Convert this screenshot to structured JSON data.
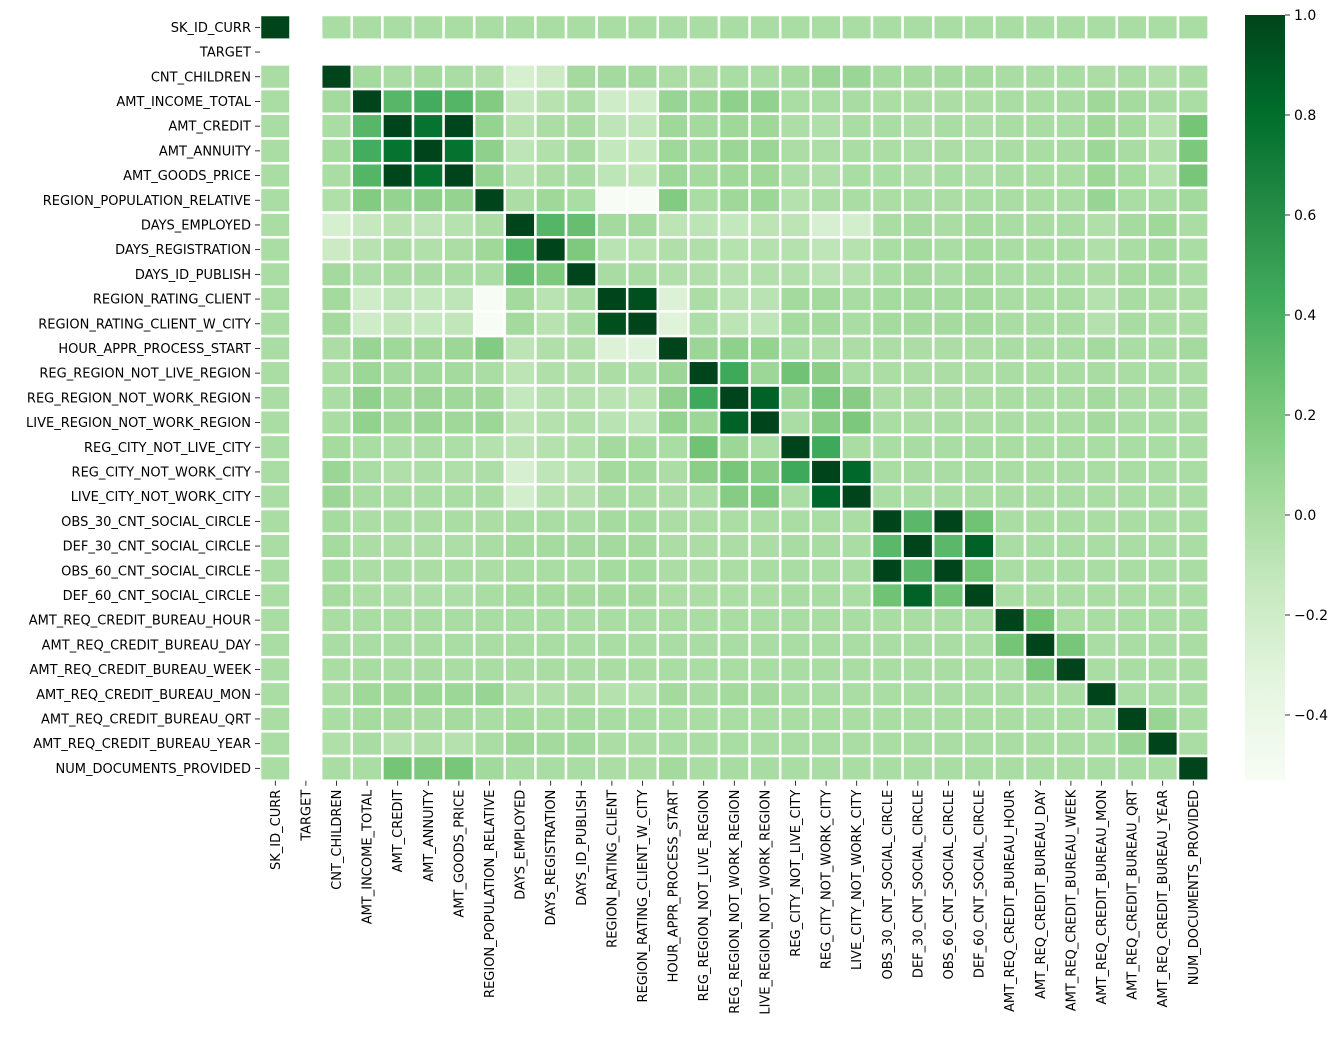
{
  "chart_data": {
    "type": "heatmap",
    "title": "",
    "colormap": "Greens",
    "colors": {
      "low": "#f7fcf5",
      "high": "#00441b",
      "nan": "#ffffff",
      "cell_border": "#ffffff"
    },
    "vmin": -0.53,
    "vmax": 1.0,
    "labels": [
      "SK_ID_CURR",
      "TARGET",
      "CNT_CHILDREN",
      "AMT_INCOME_TOTAL",
      "AMT_CREDIT",
      "AMT_ANNUITY",
      "AMT_GOODS_PRICE",
      "REGION_POPULATION_RELATIVE",
      "DAYS_EMPLOYED",
      "DAYS_REGISTRATION",
      "DAYS_ID_PUBLISH",
      "REGION_RATING_CLIENT",
      "REGION_RATING_CLIENT_W_CITY",
      "HOUR_APPR_PROCESS_START",
      "REG_REGION_NOT_LIVE_REGION",
      "REG_REGION_NOT_WORK_REGION",
      "LIVE_REGION_NOT_WORK_REGION",
      "REG_CITY_NOT_LIVE_CITY",
      "REG_CITY_NOT_WORK_CITY",
      "LIVE_CITY_NOT_WORK_CITY",
      "OBS_30_CNT_SOCIAL_CIRCLE",
      "DEF_30_CNT_SOCIAL_CIRCLE",
      "OBS_60_CNT_SOCIAL_CIRCLE",
      "DEF_60_CNT_SOCIAL_CIRCLE",
      "AMT_REQ_CREDIT_BUREAU_HOUR",
      "AMT_REQ_CREDIT_BUREAU_DAY",
      "AMT_REQ_CREDIT_BUREAU_WEEK",
      "AMT_REQ_CREDIT_BUREAU_MON",
      "AMT_REQ_CREDIT_BUREAU_QRT",
      "AMT_REQ_CREDIT_BUREAU_YEAR",
      "NUM_DOCUMENTS_PROVIDED"
    ],
    "matrix": [
      [
        1.0,
        null,
        0.0,
        0.0,
        0.0,
        0.0,
        0.0,
        0.0,
        0.0,
        0.0,
        0.0,
        0.0,
        0.0,
        0.0,
        0.0,
        0.0,
        0.0,
        0.0,
        0.0,
        0.0,
        0.0,
        0.0,
        0.0,
        0.0,
        0.0,
        0.0,
        0.0,
        0.0,
        0.0,
        0.0,
        0.0
      ],
      [
        null,
        null,
        null,
        null,
        null,
        null,
        null,
        null,
        null,
        null,
        null,
        null,
        null,
        null,
        null,
        null,
        null,
        null,
        null,
        null,
        null,
        null,
        null,
        null,
        null,
        null,
        null,
        null,
        null,
        null,
        null
      ],
      [
        0.0,
        null,
        1.0,
        0.03,
        0.0,
        0.02,
        0.0,
        -0.03,
        -0.24,
        -0.18,
        0.03,
        0.03,
        0.03,
        -0.01,
        -0.01,
        0.0,
        0.0,
        0.02,
        0.07,
        0.07,
        0.02,
        0.02,
        0.02,
        0.02,
        0.0,
        0.0,
        0.0,
        -0.01,
        0.0,
        -0.03,
        0.0
      ],
      [
        0.0,
        null,
        0.03,
        1.0,
        0.34,
        0.42,
        0.35,
        0.17,
        -0.14,
        -0.07,
        -0.02,
        -0.19,
        -0.2,
        0.08,
        0.06,
        0.12,
        0.11,
        0.0,
        0.0,
        0.01,
        -0.01,
        -0.01,
        -0.01,
        -0.01,
        0.0,
        0.0,
        0.01,
        0.05,
        0.02,
        0.01,
        0.0
      ],
      [
        0.0,
        null,
        0.0,
        0.34,
        1.0,
        0.77,
        0.99,
        0.1,
        -0.07,
        -0.01,
        0.01,
        -0.1,
        -0.11,
        0.05,
        0.03,
        0.05,
        0.05,
        -0.02,
        -0.03,
        0.0,
        0.0,
        -0.02,
        0.0,
        -0.02,
        0.0,
        0.0,
        0.0,
        0.05,
        0.02,
        -0.05,
        0.23
      ],
      [
        0.0,
        null,
        0.02,
        0.42,
        0.77,
        1.0,
        0.78,
        0.12,
        -0.1,
        -0.04,
        0.01,
        -0.13,
        -0.14,
        0.05,
        0.04,
        0.07,
        0.07,
        -0.01,
        -0.02,
        0.0,
        -0.01,
        -0.02,
        -0.01,
        -0.02,
        0.0,
        0.0,
        0.01,
        0.06,
        0.01,
        -0.03,
        0.2
      ],
      [
        0.0,
        null,
        0.0,
        0.35,
        0.99,
        0.78,
        1.0,
        0.1,
        -0.06,
        -0.01,
        0.01,
        -0.1,
        -0.11,
        0.06,
        0.03,
        0.05,
        0.05,
        -0.02,
        -0.03,
        0.0,
        0.0,
        -0.02,
        0.0,
        -0.02,
        0.0,
        0.0,
        0.0,
        0.06,
        0.02,
        -0.05,
        0.22
      ],
      [
        0.0,
        null,
        -0.03,
        0.17,
        0.1,
        0.12,
        0.1,
        1.0,
        -0.01,
        0.05,
        0.0,
        -0.53,
        -0.53,
        0.17,
        0.0,
        0.05,
        0.06,
        -0.05,
        -0.02,
        0.0,
        -0.01,
        0.0,
        -0.01,
        0.0,
        0.0,
        0.0,
        0.0,
        0.08,
        -0.0,
        0.0,
        0.04
      ],
      [
        0.0,
        null,
        -0.24,
        -0.14,
        -0.07,
        -0.1,
        -0.06,
        -0.01,
        1.0,
        0.35,
        0.28,
        0.03,
        0.03,
        -0.09,
        -0.09,
        -0.13,
        -0.09,
        -0.09,
        -0.25,
        -0.22,
        0.0,
        0.02,
        0.0,
        0.02,
        0.0,
        0.0,
        0.0,
        -0.03,
        0.02,
        0.05,
        0.0
      ],
      [
        0.0,
        null,
        -0.18,
        -0.07,
        -0.01,
        -0.04,
        -0.01,
        0.05,
        0.35,
        1.0,
        0.19,
        -0.08,
        -0.07,
        -0.03,
        -0.03,
        -0.06,
        -0.05,
        -0.05,
        -0.1,
        -0.06,
        0.0,
        0.02,
        0.0,
        0.02,
        0.0,
        0.0,
        0.0,
        -0.03,
        0.0,
        0.03,
        0.0
      ],
      [
        0.0,
        null,
        0.03,
        -0.02,
        0.01,
        0.01,
        0.01,
        0.0,
        0.28,
        0.19,
        1.0,
        0.01,
        0.01,
        -0.03,
        -0.03,
        -0.05,
        -0.04,
        -0.04,
        -0.08,
        -0.05,
        0.0,
        0.03,
        0.0,
        0.03,
        0.0,
        0.0,
        0.0,
        -0.01,
        0.02,
        0.04,
        0.0
      ],
      [
        0.0,
        null,
        0.03,
        -0.19,
        -0.1,
        -0.13,
        -0.1,
        -0.53,
        0.03,
        -0.08,
        0.01,
        1.0,
        0.95,
        -0.28,
        -0.01,
        -0.08,
        -0.08,
        0.03,
        0.03,
        0.01,
        0.02,
        0.03,
        0.02,
        0.03,
        0.0,
        0.0,
        0.0,
        -0.05,
        0.01,
        -0.01,
        -0.01
      ],
      [
        0.0,
        null,
        0.03,
        -0.2,
        -0.11,
        -0.14,
        -0.11,
        -0.53,
        0.03,
        -0.07,
        0.01,
        0.95,
        1.0,
        -0.3,
        -0.02,
        -0.09,
        -0.1,
        0.02,
        0.03,
        0.0,
        0.02,
        0.03,
        0.02,
        0.03,
        0.0,
        0.0,
        0.0,
        -0.05,
        0.01,
        -0.01,
        -0.01
      ],
      [
        0.0,
        null,
        -0.01,
        0.08,
        0.05,
        0.05,
        0.06,
        0.17,
        -0.09,
        -0.03,
        -0.03,
        -0.28,
        -0.3,
        1.0,
        0.07,
        0.12,
        0.1,
        0.0,
        -0.01,
        -0.01,
        -0.01,
        -0.01,
        -0.01,
        -0.01,
        0.0,
        0.0,
        0.0,
        0.03,
        0.0,
        0.0,
        0.03
      ],
      [
        0.0,
        null,
        -0.01,
        0.06,
        0.03,
        0.04,
        0.03,
        0.0,
        -0.09,
        -0.03,
        -0.03,
        -0.01,
        -0.02,
        0.07,
        1.0,
        0.44,
        0.06,
        0.25,
        0.14,
        0.0,
        -0.01,
        -0.01,
        -0.01,
        -0.01,
        0.0,
        0.0,
        0.0,
        0.01,
        0.0,
        0.0,
        0.0
      ],
      [
        0.0,
        null,
        0.0,
        0.12,
        0.05,
        0.07,
        0.05,
        0.05,
        -0.13,
        -0.06,
        -0.05,
        -0.08,
        -0.09,
        0.12,
        0.44,
        1.0,
        0.86,
        0.06,
        0.22,
        0.16,
        -0.01,
        -0.01,
        -0.01,
        -0.01,
        0.0,
        0.0,
        0.0,
        0.03,
        0.0,
        0.0,
        0.01
      ],
      [
        0.0,
        null,
        0.0,
        0.11,
        0.05,
        0.07,
        0.05,
        0.06,
        -0.09,
        -0.05,
        -0.04,
        -0.08,
        -0.1,
        0.1,
        0.06,
        0.86,
        1.0,
        0.0,
        0.15,
        0.2,
        0.0,
        -0.01,
        0.0,
        -0.01,
        0.0,
        0.0,
        0.0,
        0.03,
        0.0,
        0.0,
        0.01
      ],
      [
        0.0,
        null,
        0.02,
        0.0,
        -0.02,
        -0.01,
        -0.02,
        -0.05,
        -0.09,
        -0.05,
        -0.04,
        0.03,
        0.02,
        0.0,
        0.25,
        0.06,
        0.0,
        1.0,
        0.44,
        0.0,
        0.0,
        0.01,
        0.0,
        0.01,
        0.0,
        0.0,
        0.0,
        0.0,
        0.0,
        0.0,
        0.0
      ],
      [
        0.0,
        null,
        0.07,
        0.0,
        -0.03,
        -0.02,
        -0.03,
        -0.02,
        -0.25,
        -0.1,
        -0.08,
        0.03,
        0.03,
        -0.01,
        0.14,
        0.22,
        0.15,
        0.44,
        1.0,
        0.83,
        0.0,
        0.01,
        0.0,
        0.01,
        0.0,
        0.0,
        0.0,
        0.0,
        0.0,
        0.0,
        0.0
      ],
      [
        0.0,
        null,
        0.07,
        0.01,
        0.0,
        0.0,
        0.0,
        0.0,
        -0.22,
        -0.06,
        -0.05,
        0.01,
        0.0,
        -0.01,
        0.0,
        0.16,
        0.2,
        0.0,
        0.83,
        1.0,
        0.0,
        0.0,
        0.0,
        0.0,
        0.0,
        0.0,
        0.0,
        0.0,
        0.0,
        0.0,
        0.0
      ],
      [
        0.0,
        null,
        0.02,
        -0.01,
        0.0,
        -0.01,
        0.0,
        -0.01,
        0.0,
        0.0,
        0.0,
        0.02,
        0.02,
        -0.01,
        -0.01,
        -0.01,
        0.0,
        0.0,
        0.0,
        0.0,
        1.0,
        0.33,
        1.0,
        0.25,
        0.0,
        0.0,
        0.0,
        0.0,
        0.0,
        0.0,
        0.0
      ],
      [
        0.0,
        null,
        0.02,
        -0.01,
        -0.02,
        -0.02,
        -0.02,
        0.0,
        0.02,
        0.02,
        0.03,
        0.03,
        0.03,
        -0.01,
        -0.01,
        -0.01,
        -0.01,
        0.01,
        0.01,
        0.0,
        0.33,
        1.0,
        0.33,
        0.86,
        0.0,
        0.0,
        0.0,
        0.0,
        0.0,
        0.0,
        0.0
      ],
      [
        0.0,
        null,
        0.02,
        -0.01,
        0.0,
        -0.01,
        0.0,
        -0.01,
        0.0,
        0.0,
        0.0,
        0.02,
        0.02,
        -0.01,
        -0.01,
        -0.01,
        0.0,
        0.0,
        0.0,
        0.0,
        1.0,
        0.33,
        1.0,
        0.25,
        0.0,
        0.0,
        0.0,
        0.0,
        0.0,
        0.0,
        0.0
      ],
      [
        0.0,
        null,
        0.02,
        -0.01,
        -0.02,
        -0.02,
        -0.02,
        0.0,
        0.02,
        0.02,
        0.03,
        0.03,
        0.03,
        -0.01,
        -0.01,
        -0.01,
        -0.01,
        0.01,
        0.01,
        0.0,
        0.25,
        0.86,
        0.25,
        1.0,
        0.0,
        0.0,
        0.0,
        0.0,
        0.0,
        0.0,
        0.0
      ],
      [
        0.0,
        null,
        0.0,
        0.0,
        0.0,
        0.0,
        0.0,
        0.0,
        0.0,
        0.0,
        0.0,
        0.0,
        0.0,
        0.0,
        0.0,
        0.0,
        0.0,
        0.0,
        0.0,
        0.0,
        0.0,
        0.0,
        0.0,
        0.0,
        1.0,
        0.23,
        0.0,
        0.0,
        0.0,
        0.0,
        0.0
      ],
      [
        0.0,
        null,
        0.0,
        0.0,
        0.0,
        0.0,
        0.0,
        0.0,
        0.0,
        0.0,
        0.0,
        0.0,
        0.0,
        0.0,
        0.0,
        0.0,
        0.0,
        0.0,
        0.0,
        0.0,
        0.0,
        0.0,
        0.0,
        0.0,
        0.23,
        1.0,
        0.22,
        0.0,
        0.0,
        0.0,
        0.0
      ],
      [
        0.0,
        null,
        0.0,
        0.01,
        0.0,
        0.01,
        0.0,
        0.0,
        0.0,
        0.0,
        0.0,
        0.0,
        0.0,
        0.0,
        0.0,
        0.0,
        0.0,
        0.0,
        0.0,
        0.0,
        0.0,
        0.0,
        0.0,
        0.0,
        0.0,
        0.22,
        1.0,
        0.0,
        0.0,
        0.0,
        0.0
      ],
      [
        0.0,
        null,
        -0.01,
        0.05,
        0.05,
        0.06,
        0.06,
        0.08,
        -0.03,
        -0.03,
        -0.01,
        -0.05,
        -0.05,
        0.03,
        0.01,
        0.03,
        0.03,
        0.0,
        0.0,
        0.0,
        0.0,
        0.0,
        0.0,
        0.0,
        0.0,
        0.0,
        0.0,
        1.0,
        0.0,
        0.0,
        0.0
      ],
      [
        0.0,
        null,
        0.0,
        0.02,
        0.02,
        0.01,
        0.02,
        0.0,
        0.02,
        0.0,
        0.02,
        0.01,
        0.01,
        0.0,
        0.0,
        0.0,
        0.0,
        0.0,
        0.0,
        0.0,
        0.0,
        0.0,
        0.0,
        0.0,
        0.0,
        0.0,
        0.0,
        0.0,
        1.0,
        0.08,
        0.0
      ],
      [
        0.0,
        null,
        -0.03,
        0.01,
        -0.05,
        -0.03,
        -0.05,
        0.0,
        0.05,
        0.03,
        0.04,
        -0.01,
        -0.01,
        0.0,
        0.0,
        0.0,
        0.0,
        0.0,
        0.0,
        0.0,
        0.0,
        0.0,
        0.0,
        0.0,
        0.0,
        0.0,
        0.0,
        0.0,
        0.08,
        1.0,
        0.0
      ],
      [
        0.0,
        null,
        0.0,
        0.0,
        0.23,
        0.2,
        0.22,
        0.04,
        0.0,
        0.0,
        0.0,
        -0.01,
        -0.01,
        0.03,
        0.0,
        0.01,
        0.01,
        0.0,
        0.0,
        0.0,
        0.0,
        0.0,
        0.0,
        0.0,
        0.0,
        0.0,
        0.0,
        0.0,
        0.0,
        0.0,
        1.0
      ]
    ],
    "colorbar": {
      "ticks": [
        -0.4,
        -0.2,
        0.0,
        0.2,
        0.4,
        0.6,
        0.8,
        1.0
      ],
      "tick_labels": [
        "−0.4",
        "−0.2",
        "0.0",
        "0.2",
        "0.4",
        "0.6",
        "0.8",
        "1.0"
      ]
    }
  }
}
